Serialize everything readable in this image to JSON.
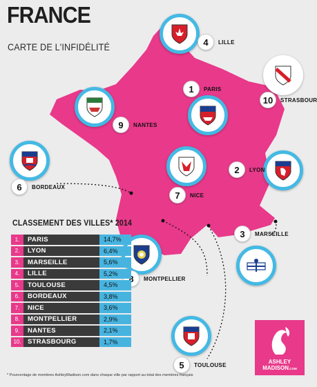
{
  "header": {
    "title": "FRANCE",
    "subtitle": "CARTE DE L'INFIDÉLITÉ"
  },
  "colors": {
    "map_fill": "#e8398a",
    "badge_ring": "#44b9e4",
    "table_rank_bg": "#e8398a",
    "table_city_bg": "#3a3a3a",
    "table_pct_bg": "#47b4e0"
  },
  "map_labels": [
    {
      "rank": "1",
      "city": "PARIS"
    },
    {
      "rank": "2",
      "city": "LYON"
    },
    {
      "rank": "3",
      "city": "MARSEILLE"
    },
    {
      "rank": "4",
      "city": "LILLE"
    },
    {
      "rank": "5",
      "city": "TOULOUSE"
    },
    {
      "rank": "6",
      "city": "BORDEAUX"
    },
    {
      "rank": "7",
      "city": "NICE"
    },
    {
      "rank": "8",
      "city": "MONTPELLIER"
    },
    {
      "rank": "9",
      "city": "NANTES"
    },
    {
      "rank": "10",
      "city": "STRASBOURG"
    }
  ],
  "ranking": {
    "title": "CLASSEMENT DES VILLES* 2014",
    "rows": [
      {
        "rank": "1.",
        "city": "PARIS",
        "pct": "14,7%"
      },
      {
        "rank": "2.",
        "city": "LYON",
        "pct": "6,4%"
      },
      {
        "rank": "3.",
        "city": "MARSEILLE",
        "pct": "5,6%"
      },
      {
        "rank": "4.",
        "city": "LILLE",
        "pct": "5,2%"
      },
      {
        "rank": "5.",
        "city": "TOULOUSE",
        "pct": "4,5%"
      },
      {
        "rank": "6.",
        "city": "BORDEAUX",
        "pct": "3,8%"
      },
      {
        "rank": "7.",
        "city": "NICE",
        "pct": "3,6%"
      },
      {
        "rank": "8.",
        "city": "MONTPELLIER",
        "pct": "2,9%"
      },
      {
        "rank": "9.",
        "city": "NANTES",
        "pct": "2,1%"
      },
      {
        "rank": "10.",
        "city": "STRASBOURG",
        "pct": "1,7%"
      }
    ]
  },
  "footnote": "* Pourcentage de membres AshleyMadison.com dans chaque ville par rapport au total des membres français",
  "logo": {
    "line1": "ASHLEY",
    "line2": "MADISON",
    "suffix": ".COM"
  },
  "icons": {
    "crest": "city-coat-of-arms-icon",
    "logo_figure": "woman-silhouette-icon"
  }
}
